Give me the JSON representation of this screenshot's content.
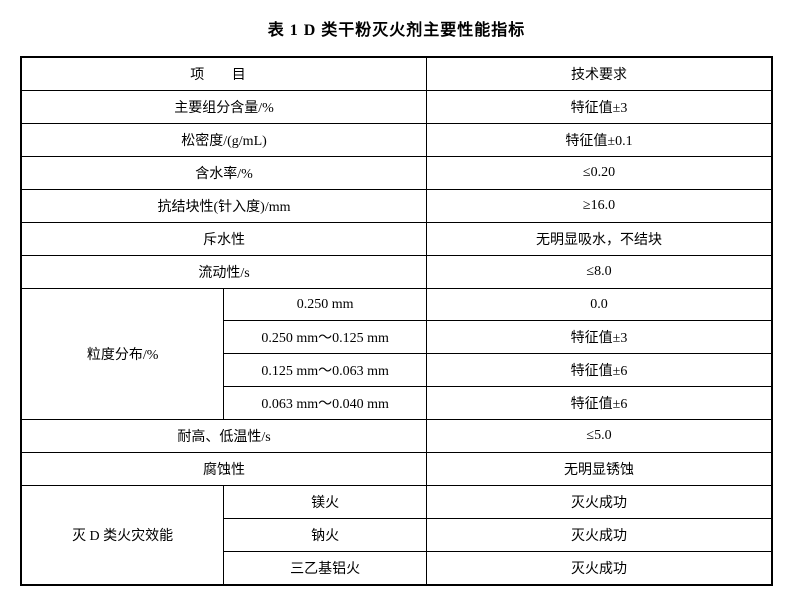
{
  "title": "表 1  D 类干粉灭火剂主要性能指标",
  "colors": {
    "border": "#000000",
    "background": "#ffffff",
    "text": "#000000"
  },
  "header": {
    "project": "项  目",
    "requirement": "技术要求"
  },
  "rows": {
    "r1": {
      "label": "主要组分含量/%",
      "value": "特征值±3"
    },
    "r2": {
      "label": "松密度/(g/mL)",
      "value": "特征值±0.1"
    },
    "r3": {
      "label": "含水率/%",
      "value": "≤0.20"
    },
    "r4": {
      "label": "抗结块性(针入度)/mm",
      "value": "≥16.0"
    },
    "r5": {
      "label": "斥水性",
      "value": "无明显吸水，不结块"
    },
    "r6": {
      "label": "流动性/s",
      "value": "≤8.0"
    }
  },
  "particle": {
    "label": "粒度分布/%",
    "sub1": {
      "range": "0.250 mm",
      "value": "0.0"
    },
    "sub2": {
      "range": "0.250 mm～0.125 mm",
      "value": "特征值±3"
    },
    "sub3": {
      "range": "0.125 mm～0.063 mm",
      "value": "特征值±6"
    },
    "sub4": {
      "range": "0.063 mm～0.040 mm",
      "value": "特征值±6"
    }
  },
  "r7": {
    "label": "耐高、低温性/s",
    "value": "≤5.0"
  },
  "r8": {
    "label": "腐蚀性",
    "value": "无明显锈蚀"
  },
  "fire": {
    "label": "灭 D 类火灾效能",
    "sub1": {
      "type": "镁火",
      "value": "灭火成功"
    },
    "sub2": {
      "type": "钠火",
      "value": "灭火成功"
    },
    "sub3": {
      "type": "三乙基铝火",
      "value": "灭火成功"
    }
  }
}
